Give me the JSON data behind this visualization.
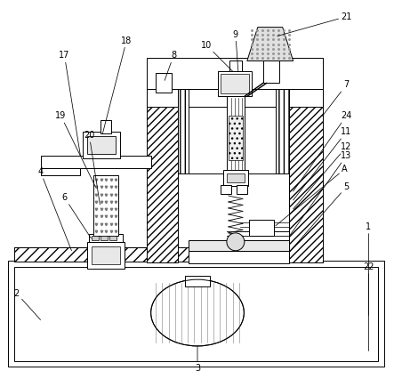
{
  "bg_color": "#ffffff",
  "lc": "#000000",
  "lw": 0.7,
  "fig_w": 4.43,
  "fig_h": 4.26
}
